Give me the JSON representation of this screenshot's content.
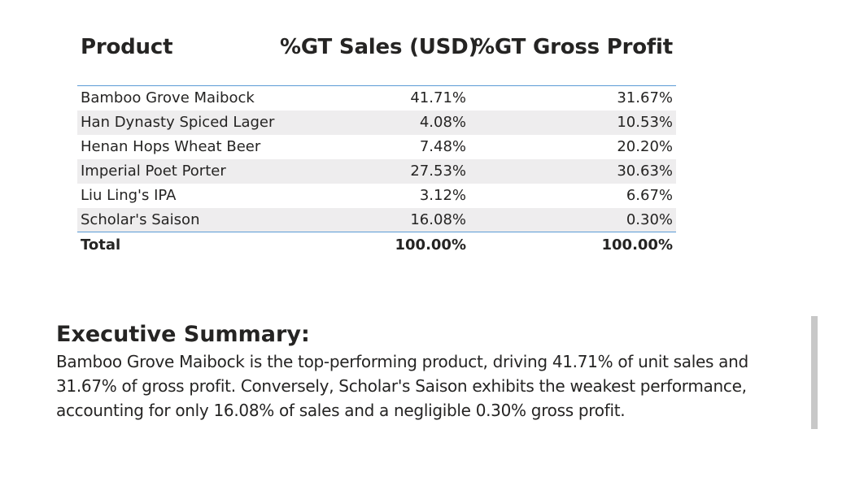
{
  "table": {
    "columns": [
      "Product",
      "%GT Sales (USD)",
      "%GT Gross Profit"
    ],
    "rows": [
      {
        "product": "Bamboo Grove Maibock",
        "sales": "41.71%",
        "gross_profit": "31.67%"
      },
      {
        "product": "Han Dynasty Spiced Lager",
        "sales": "4.08%",
        "gross_profit": "10.53%"
      },
      {
        "product": "Henan Hops Wheat Beer",
        "sales": "7.48%",
        "gross_profit": "20.20%"
      },
      {
        "product": "Imperial Poet Porter",
        "sales": "27.53%",
        "gross_profit": "30.63%"
      },
      {
        "product": "Liu Ling's IPA",
        "sales": "3.12%",
        "gross_profit": "6.67%"
      },
      {
        "product": "Scholar's Saison",
        "sales": "16.08%",
        "gross_profit": "0.30%"
      }
    ],
    "total": {
      "label": "Total",
      "sales": "100.00%",
      "gross_profit": "100.00%"
    }
  },
  "summary": {
    "title": "Executive Summary:",
    "lines": [
      "Bamboo Grove Maibock is the top-performing product, driving 41.71% of unit sales and",
      "31.67% of gross profit. Conversely, Scholar's Saison exhibits the weakest performance,",
      "accounting for only 16.08% of sales and a negligible 0.30% gross profit."
    ]
  },
  "colors": {
    "text": "#252423",
    "row_alt": "#eeedee",
    "accent_line": "#5b9bd5",
    "scrollbar": "#c8c8c8"
  }
}
